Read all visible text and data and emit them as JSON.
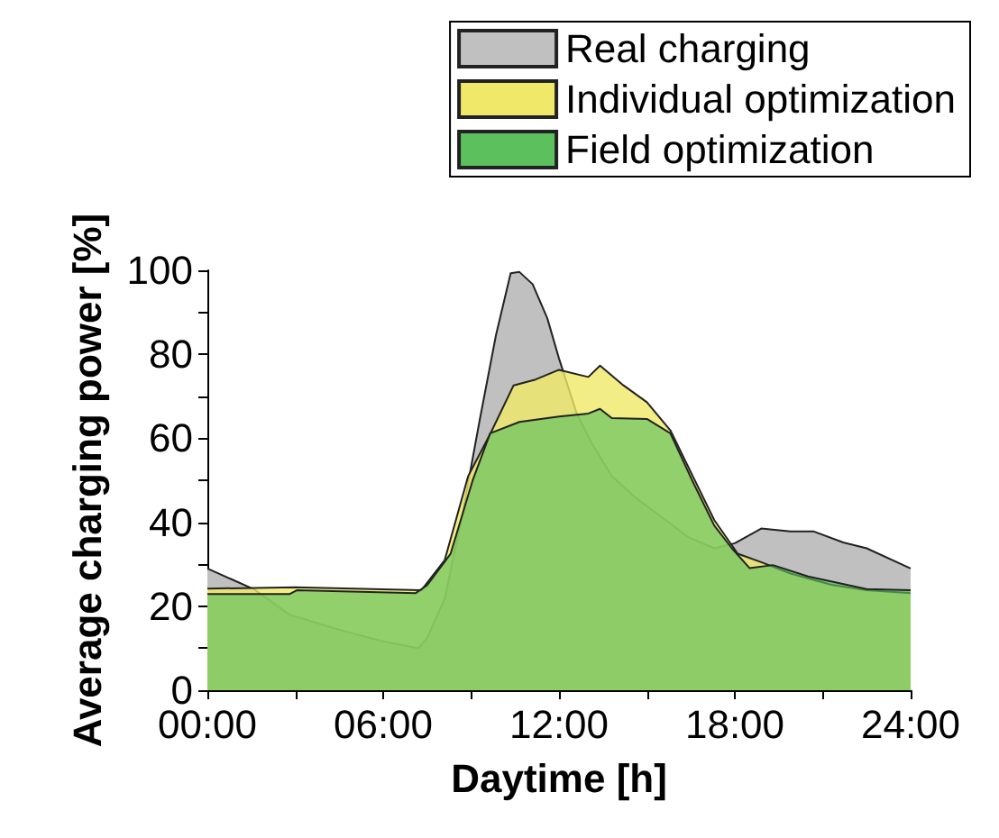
{
  "chart_data": {
    "type": "area",
    "xlabel": "Daytime [h]",
    "ylabel": "Average charging power [%]",
    "xlim": [
      0,
      24
    ],
    "ylim": [
      0,
      100
    ],
    "xticks": [
      {
        "value": 0,
        "label": "00:00"
      },
      {
        "value": 3,
        "label": null
      },
      {
        "value": 6,
        "label": "06:00"
      },
      {
        "value": 9,
        "label": null
      },
      {
        "value": 12,
        "label": "12:00"
      },
      {
        "value": 15,
        "label": null
      },
      {
        "value": 18,
        "label": "18:00"
      },
      {
        "value": 21,
        "label": null
      },
      {
        "value": 24,
        "label": "24:00"
      }
    ],
    "yticks": [
      0,
      {
        "value": 10,
        "label": null
      },
      20,
      {
        "value": 30,
        "label": null
      },
      40,
      {
        "value": 50,
        "label": null
      },
      60,
      {
        "value": 70,
        "label": null
      },
      80,
      {
        "value": 90,
        "label": null
      },
      100
    ],
    "legend": "top right",
    "grid": false,
    "series": [
      {
        "name": "Real charging",
        "color": "#c0c0c0",
        "x": [
          0,
          0.8,
          1.6,
          2.8,
          4.5,
          5.9,
          7.2,
          7.5,
          8.1,
          8.7,
          9.3,
          9.85,
          10.35,
          10.65,
          11.1,
          11.6,
          12.0,
          12.6,
          13.1,
          13.8,
          14.6,
          15.4,
          16.4,
          17.3,
          18.0,
          18.9,
          19.9,
          20.7,
          21.7,
          22.5,
          24
        ],
        "values": [
          29,
          26.5,
          24,
          18,
          14.4,
          11.8,
          10,
          12.4,
          21.8,
          41.8,
          64.6,
          84.6,
          99.3,
          99.6,
          96.7,
          88.6,
          79,
          66,
          59,
          51,
          45.9,
          41.8,
          36.5,
          33.8,
          35,
          38.5,
          37.8,
          37.8,
          35.2,
          33.8,
          29
        ]
      },
      {
        "name": "Individual optimization",
        "color": "#f0e868",
        "x": [
          0,
          3,
          7.3,
          8.1,
          8.9,
          9.65,
          10.45,
          11.2,
          12.0,
          13.0,
          13.4,
          14.2,
          15.0,
          15.8,
          16.55,
          17.3,
          18.1,
          18.9,
          19.9,
          21.3,
          22.5,
          24
        ],
        "values": [
          24.2,
          24.5,
          23.8,
          31,
          51,
          61,
          72.6,
          74,
          76.3,
          74.6,
          77.3,
          72.6,
          68.6,
          61.9,
          51.2,
          40.5,
          32.5,
          30.5,
          27.8,
          25.1,
          23.8,
          23.1
        ]
      },
      {
        "name": "Field optimization",
        "color": "#5cc05c",
        "x": [
          0,
          2.8,
          3.05,
          7.1,
          7.5,
          8.3,
          9.05,
          9.65,
          10.65,
          12.0,
          13.0,
          13.4,
          13.8,
          15.0,
          15.8,
          16.55,
          17.3,
          17.9,
          18.5,
          19.3,
          20.5,
          22.5,
          24
        ],
        "values": [
          22.9,
          22.9,
          23.8,
          23.1,
          25,
          32.5,
          49.9,
          61.2,
          63.9,
          65.2,
          65.9,
          67,
          64.8,
          64.6,
          61.2,
          49.9,
          39.2,
          33.8,
          29.1,
          29.8,
          27.1,
          24.1,
          23.8
        ]
      }
    ]
  }
}
